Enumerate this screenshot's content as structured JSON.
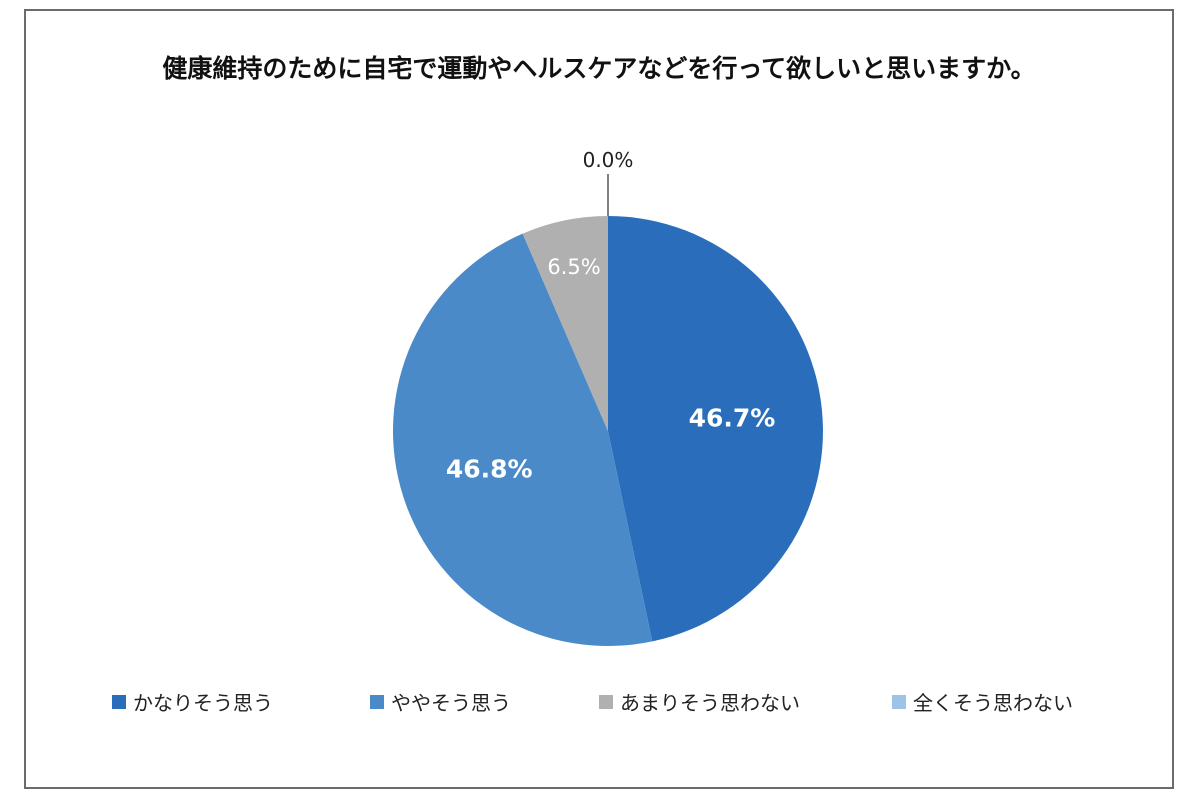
{
  "chart_data": {
    "type": "pie",
    "title": "健康維持のために自宅で運動やヘルスケアなどを行って欲しいと思いますか。",
    "unit": "%",
    "slices": [
      {
        "label": "かなりそう思う",
        "value": 46.7,
        "value_label": "46.7%",
        "color": "#2a6ebb"
      },
      {
        "label": "ややそう思う",
        "value": 46.8,
        "value_label": "46.8%",
        "color": "#4a8ac8"
      },
      {
        "label": "あまりそう思わない",
        "value": 6.5,
        "value_label": "6.5%",
        "color": "#b0b0b0"
      },
      {
        "label": "全くそう思わない",
        "value": 0.0,
        "value_label": "0.0%",
        "color": "#9dc3e6"
      }
    ],
    "legend_position": "bottom",
    "start_angle": "12 o'clock",
    "direction": "clockwise"
  }
}
